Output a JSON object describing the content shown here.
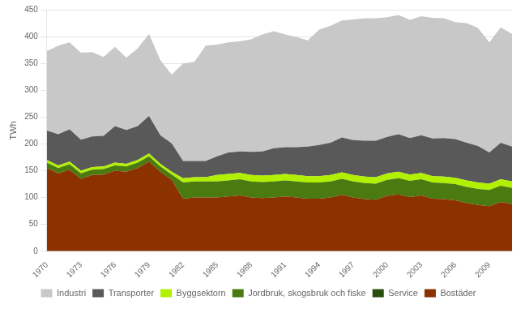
{
  "chart_data": {
    "type": "area",
    "stacked": true,
    "ylabel": "TWh",
    "x": [
      1970,
      1971,
      1972,
      1973,
      1974,
      1975,
      1976,
      1977,
      1978,
      1979,
      1980,
      1981,
      1982,
      1983,
      1984,
      1985,
      1986,
      1987,
      1988,
      1989,
      1990,
      1991,
      1992,
      1993,
      1994,
      1995,
      1996,
      1997,
      1998,
      1999,
      2000,
      2001,
      2002,
      2003,
      2004,
      2005,
      2006,
      2007,
      2008,
      2009,
      2010,
      2011
    ],
    "series": [
      {
        "name": "Bostäder",
        "color": "#8b3200",
        "values": [
          155,
          145,
          152,
          135,
          142,
          143,
          150,
          148,
          155,
          167,
          148,
          133,
          98,
          100,
          100,
          100,
          102,
          104,
          100,
          99,
          100,
          102,
          100,
          98,
          98,
          100,
          105,
          100,
          97,
          96,
          103,
          106,
          101,
          104,
          98,
          97,
          95,
          90,
          86,
          84,
          92,
          88
        ]
      },
      {
        "name": "Service",
        "color": "#2a4d10",
        "values": [
          0,
          0,
          0,
          0,
          0,
          0,
          0,
          0,
          0,
          0,
          0,
          0,
          0,
          0,
          0,
          0,
          0,
          0,
          0,
          0,
          0,
          0,
          0,
          0,
          0,
          0,
          0,
          0,
          0,
          0,
          0,
          0,
          0,
          0,
          0,
          0,
          0,
          0,
          0,
          0,
          0,
          0
        ]
      },
      {
        "name": "Jordbruk, skogsbruk och fiske",
        "color": "#4a7a10",
        "values": [
          10,
          10,
          10,
          10,
          10,
          10,
          10,
          10,
          10,
          10,
          10,
          10,
          30,
          30,
          30,
          30,
          30,
          30,
          30,
          30,
          30,
          30,
          30,
          30,
          30,
          30,
          30,
          30,
          30,
          30,
          30,
          30,
          30,
          30,
          30,
          30,
          30,
          30,
          30,
          30,
          30,
          30
        ]
      },
      {
        "name": "Byggsektorn",
        "color": "#b0f000",
        "values": [
          5,
          5,
          5,
          5,
          5,
          5,
          5,
          5,
          5,
          5,
          5,
          5,
          8,
          8,
          8,
          12,
          12,
          12,
          12,
          12,
          12,
          12,
          12,
          12,
          12,
          12,
          12,
          12,
          12,
          12,
          12,
          12,
          12,
          12,
          12,
          12,
          12,
          12,
          12,
          12,
          12,
          12
        ]
      },
      {
        "name": "Transporter",
        "color": "#595959",
        "values": [
          55,
          58,
          60,
          58,
          57,
          57,
          68,
          63,
          63,
          70,
          53,
          53,
          32,
          30,
          30,
          35,
          40,
          40,
          43,
          45,
          50,
          50,
          52,
          55,
          58,
          60,
          65,
          65,
          67,
          68,
          68,
          70,
          68,
          70,
          70,
          72,
          72,
          70,
          68,
          58,
          68,
          65
        ]
      },
      {
        "name": "Industri",
        "color": "#c8c8c8",
        "values": [
          148,
          165,
          162,
          162,
          157,
          147,
          148,
          135,
          145,
          153,
          140,
          128,
          182,
          185,
          215,
          208,
          205,
          205,
          210,
          218,
          218,
          210,
          205,
          198,
          215,
          218,
          218,
          225,
          228,
          228,
          223,
          222,
          220,
          222,
          225,
          223,
          218,
          223,
          220,
          205,
          215,
          210
        ]
      }
    ],
    "xlim": [
      1970,
      2011
    ],
    "xticks": [
      1970,
      1973,
      1976,
      1979,
      1982,
      1985,
      1988,
      1991,
      1994,
      1997,
      2000,
      2003,
      2006,
      2009
    ],
    "ylim": [
      0,
      450
    ],
    "yticks": [
      0,
      50,
      100,
      150,
      200,
      250,
      300,
      350,
      400,
      450
    ],
    "grid": "y",
    "legend": "bottom"
  }
}
